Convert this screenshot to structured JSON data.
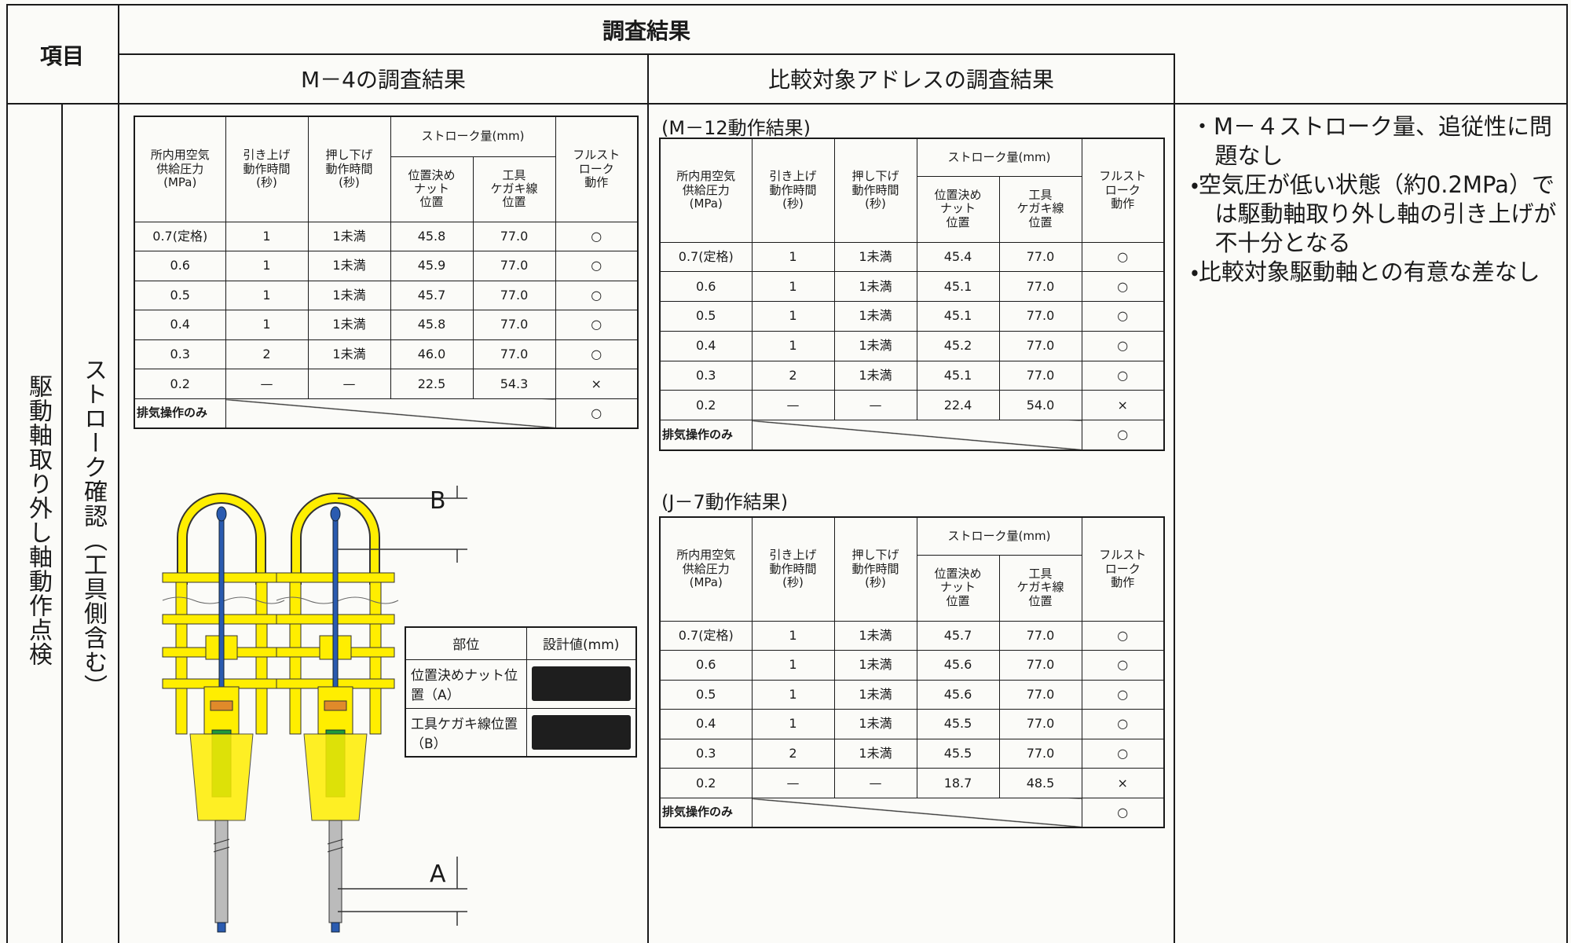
{
  "header": {
    "item": "項目",
    "results": "調査結果",
    "m4_results": "M－4の調査結果",
    "comparison_results": "比較対象アドレスの調査結果"
  },
  "row_labels": {
    "category": "駆動軸取り外し軸動作点検",
    "subcategory": "ストローク確認（工具側含む）"
  },
  "table_header": {
    "pressure": [
      "所内用空気",
      "供給圧力",
      "(MPa)"
    ],
    "pull_up": [
      "引き上げ",
      "動作時間",
      "(秒)"
    ],
    "push_down": [
      "押し下げ",
      "動作時間",
      "(秒)"
    ],
    "stroke": "ストローク量(mm)",
    "nut_position": [
      "位置決め",
      "ナット",
      "位置"
    ],
    "scribe_line_position": [
      "工具",
      "ケガキ線",
      "位置"
    ],
    "full_stroke": [
      "フルスト",
      "ローク",
      "動作"
    ]
  },
  "m4_table": {
    "rows": [
      [
        "0.7(定格)",
        "1",
        "1未満",
        "45.8",
        "77.0",
        "○"
      ],
      [
        "0.6",
        "1",
        "1未満",
        "45.9",
        "77.0",
        "○"
      ],
      [
        "0.5",
        "1",
        "1未満",
        "45.7",
        "77.0",
        "○"
      ],
      [
        "0.4",
        "1",
        "1未満",
        "45.8",
        "77.0",
        "○"
      ],
      [
        "0.3",
        "2",
        "1未満",
        "46.0",
        "77.0",
        "○"
      ],
      [
        "0.2",
        "—",
        "—",
        "22.5",
        "54.3",
        "×"
      ]
    ],
    "exhaust_row": {
      "label": "排気操作のみ",
      "result": "○"
    }
  },
  "m12_table": {
    "title": "(M－12動作結果)",
    "rows": [
      [
        "0.7(定格)",
        "1",
        "1未満",
        "45.4",
        "77.0",
        "○"
      ],
      [
        "0.6",
        "1",
        "1未満",
        "45.1",
        "77.0",
        "○"
      ],
      [
        "0.5",
        "1",
        "1未満",
        "45.1",
        "77.0",
        "○"
      ],
      [
        "0.4",
        "1",
        "1未満",
        "45.2",
        "77.0",
        "○"
      ],
      [
        "0.3",
        "2",
        "1未満",
        "45.1",
        "77.0",
        "○"
      ],
      [
        "0.2",
        "—",
        "—",
        "22.4",
        "54.0",
        "×"
      ]
    ],
    "exhaust_row": {
      "label": "排気操作のみ",
      "result": "○"
    }
  },
  "j7_table": {
    "title": "(J－7動作結果)",
    "rows": [
      [
        "0.7(定格)",
        "1",
        "1未満",
        "45.7",
        "77.0",
        "○"
      ],
      [
        "0.6",
        "1",
        "1未満",
        "45.6",
        "77.0",
        "○"
      ],
      [
        "0.5",
        "1",
        "1未満",
        "45.6",
        "77.0",
        "○"
      ],
      [
        "0.4",
        "1",
        "1未満",
        "45.5",
        "77.0",
        "○"
      ],
      [
        "0.3",
        "2",
        "1未満",
        "45.5",
        "77.0",
        "○"
      ],
      [
        "0.2",
        "—",
        "—",
        "18.7",
        "48.5",
        "×"
      ]
    ],
    "exhaust_row": {
      "label": "排気操作のみ",
      "result": "○"
    }
  },
  "diagram": {
    "label_b": "B",
    "label_a": "A"
  },
  "design_table": {
    "headers": [
      "部位",
      "設計値(mm)"
    ],
    "rows": [
      "位置決めナット位置（A）",
      "工具ケガキ線位置（B）"
    ]
  },
  "notes": [
    "・M－４ストローク量、追従性に問題なし",
    "・空気圧が低い状態（約0.2MPa）では駆動軸取り外し軸の引き上げが不十分となる",
    "・比較対象駆動軸との有意な差なし"
  ]
}
